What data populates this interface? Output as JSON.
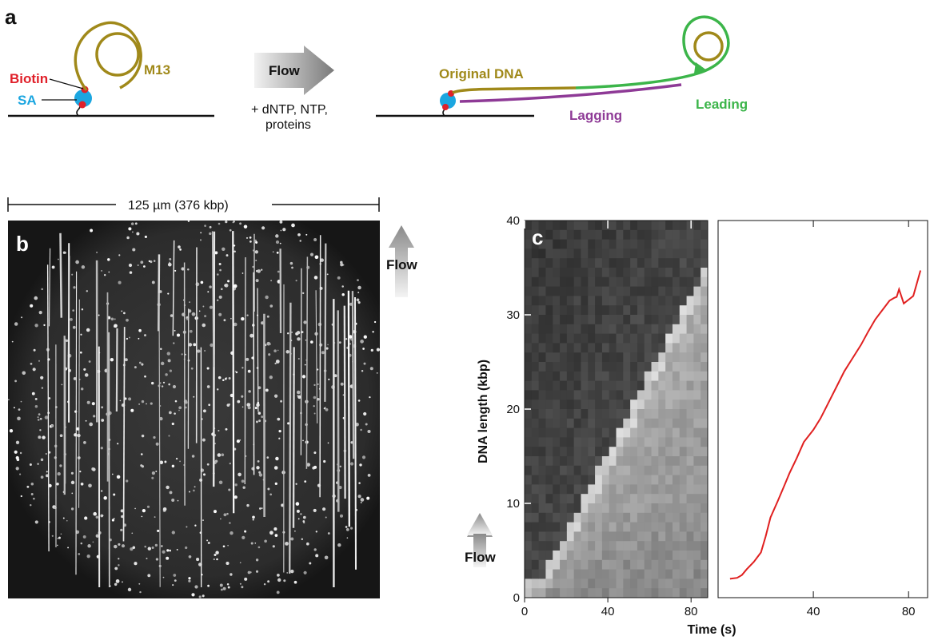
{
  "panel_a": {
    "letter": "a",
    "labels": {
      "biotin": "Biotin",
      "sa": "SA",
      "m13": "M13",
      "flow": "Flow",
      "reagents_line1": "+ dNTP, NTP,",
      "reagents_line2": "proteins",
      "original_dna": "Original DNA",
      "leading": "Leading",
      "lagging": "Lagging"
    },
    "colors": {
      "biotin": "#e0202a",
      "sa": "#1ba6e0",
      "m13": "#a0891a",
      "leading": "#3cb54a",
      "lagging": "#8e3a96"
    }
  },
  "panel_b": {
    "letter": "b",
    "scale_bar": "125 µm (376 kbp)",
    "flow_label": "Flow"
  },
  "panel_c": {
    "letter": "c",
    "flow_label": "Flow",
    "ylabel": "DNA length (kbp)",
    "xlabel": "Time (s)",
    "kymo_xticks": [
      "0",
      "40",
      "80"
    ],
    "plot_xticks": [
      "40",
      "80"
    ],
    "yticks": [
      "0",
      "10",
      "20",
      "30",
      "40"
    ],
    "line_color": "#e02020"
  },
  "chart_data": {
    "type": "line",
    "xlabel": "Time (s)",
    "ylabel": "DNA length (kbp)",
    "xlim": [
      0,
      88
    ],
    "ylim": [
      0,
      40
    ],
    "series": [
      {
        "x": [
          5,
          8,
          10,
          12,
          15,
          18,
          20,
          22,
          25,
          28,
          30,
          33,
          36,
          40,
          43,
          46,
          50,
          53,
          56,
          60,
          63,
          66,
          69,
          72,
          74,
          75,
          76,
          78,
          80,
          82,
          84,
          85
        ],
        "y": [
          2,
          2.1,
          2.4,
          3,
          3.8,
          4.8,
          6.5,
          8.5,
          10.2,
          12,
          13.2,
          14.8,
          16.5,
          17.8,
          19,
          20.5,
          22.5,
          24,
          25.2,
          26.8,
          28.2,
          29.5,
          30.5,
          31.5,
          31.8,
          31.9,
          32.7,
          31.2,
          31.6,
          32,
          33.8,
          34.7
        ]
      }
    ]
  }
}
